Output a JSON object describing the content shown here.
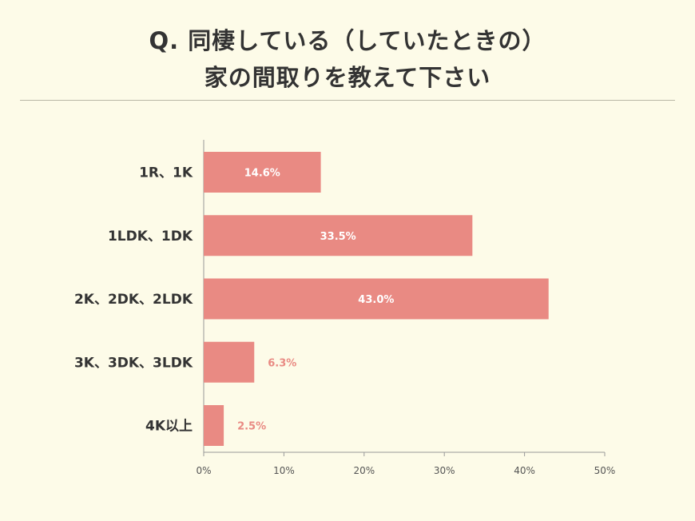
{
  "title": {
    "line1": "Q. 同棲している（していたときの）",
    "line2": "家の間取りを教えて下さい"
  },
  "colors": {
    "bar": "#e98a83",
    "value_inside": "#ffffff",
    "value_outside": "#e98a83",
    "axis": "#999999",
    "background": "#fdfbe8"
  },
  "chart_data": {
    "type": "bar",
    "orientation": "horizontal",
    "categories": [
      "1R、1K",
      "1LDK、1DK",
      "2K、2DK、2LDK",
      "3K、3DK、3LDK",
      "4K以上"
    ],
    "values": [
      14.6,
      33.5,
      43.0,
      6.3,
      2.5
    ],
    "value_labels": [
      "14.6%",
      "33.5%",
      "43.0%",
      "6.3%",
      "2.5%"
    ],
    "xlim": [
      0,
      50
    ],
    "x_ticks": [
      "0%",
      "10%",
      "20%",
      "30%",
      "40%",
      "50%"
    ],
    "grid": false
  }
}
